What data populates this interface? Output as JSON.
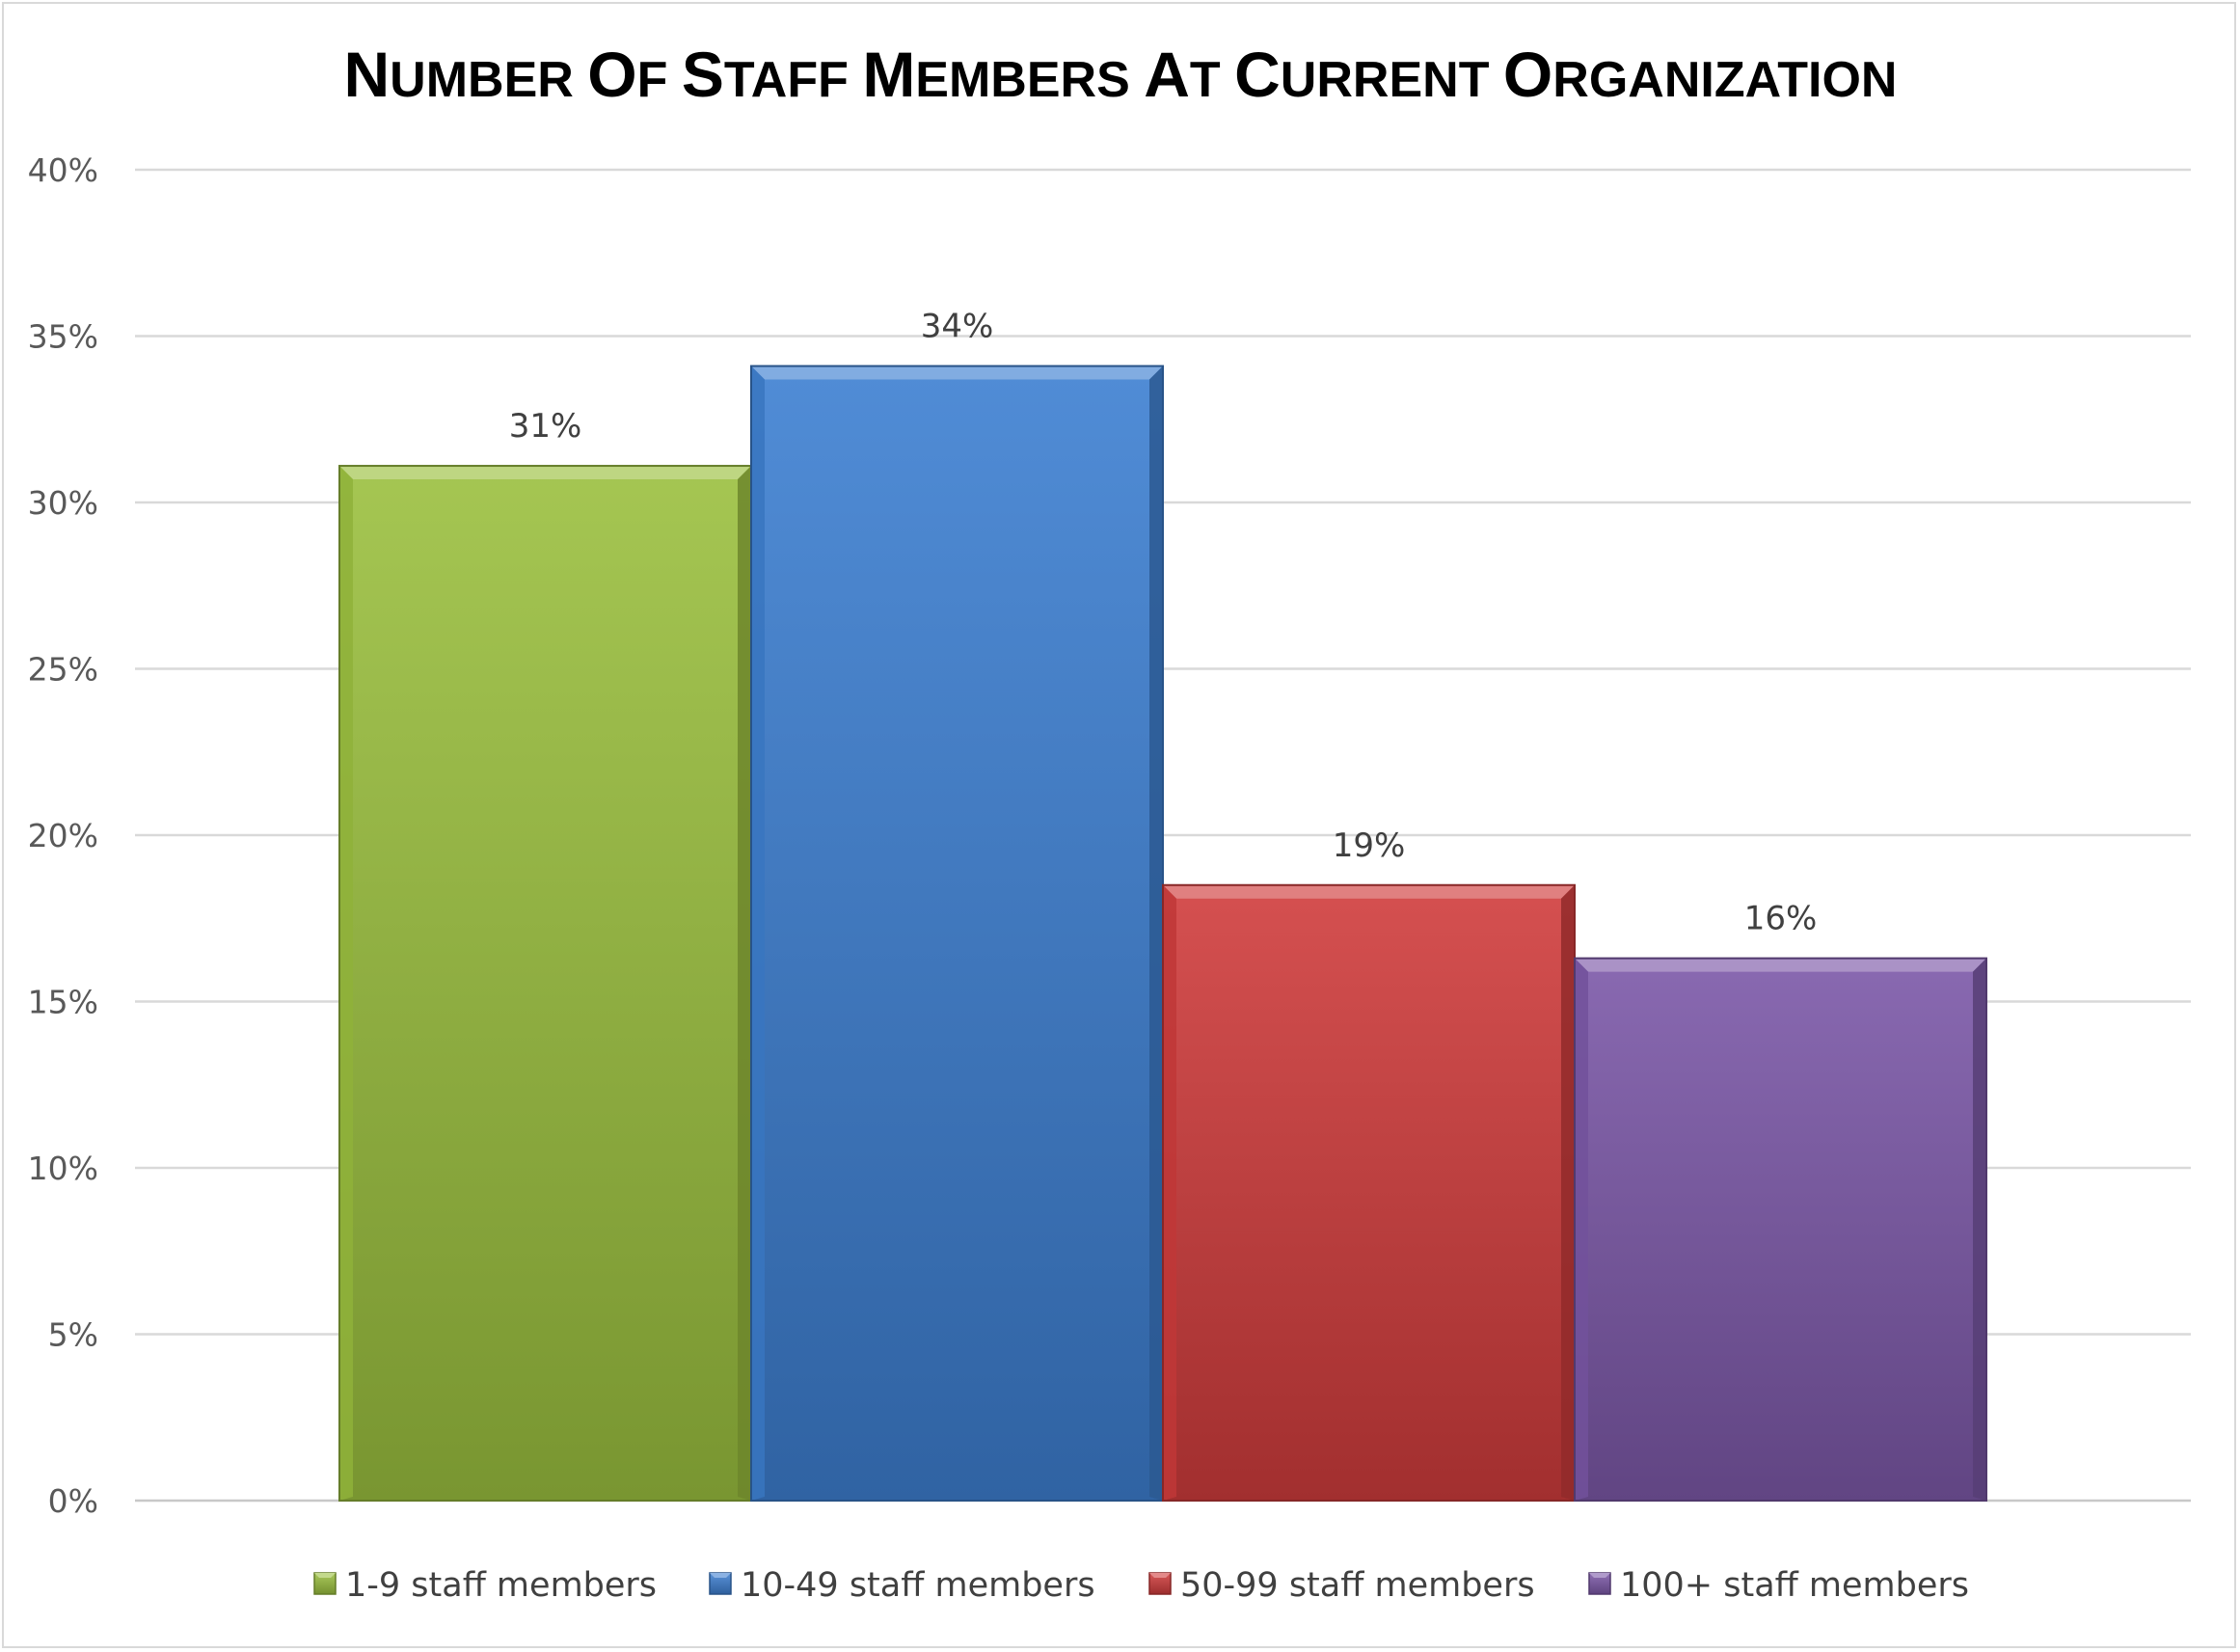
{
  "chart_data": {
    "type": "bar",
    "title": "Number of Staff Members at Current Organization",
    "xlabel": "",
    "ylabel": "",
    "ylim": [
      0,
      40
    ],
    "yticks": [
      0,
      5,
      10,
      15,
      20,
      25,
      30,
      35,
      40
    ],
    "ytick_labels": [
      "0%",
      "5%",
      "10%",
      "15%",
      "20%",
      "25%",
      "30%",
      "35%",
      "40%"
    ],
    "grid": true,
    "legend_position": "bottom",
    "series": [
      {
        "name": "1-9 staff members",
        "value": 31.1,
        "label": "31%",
        "color": "#9bc03f"
      },
      {
        "name": "10-49 staff members",
        "value": 34.1,
        "label": "34%",
        "color": "#3d7fd1"
      },
      {
        "name": "50-99 staff members",
        "value": 18.5,
        "label": "19%",
        "color": "#d03c3c"
      },
      {
        "name": "100+ staff members",
        "value": 16.3,
        "label": "16%",
        "color": "#7c58a8"
      }
    ]
  }
}
